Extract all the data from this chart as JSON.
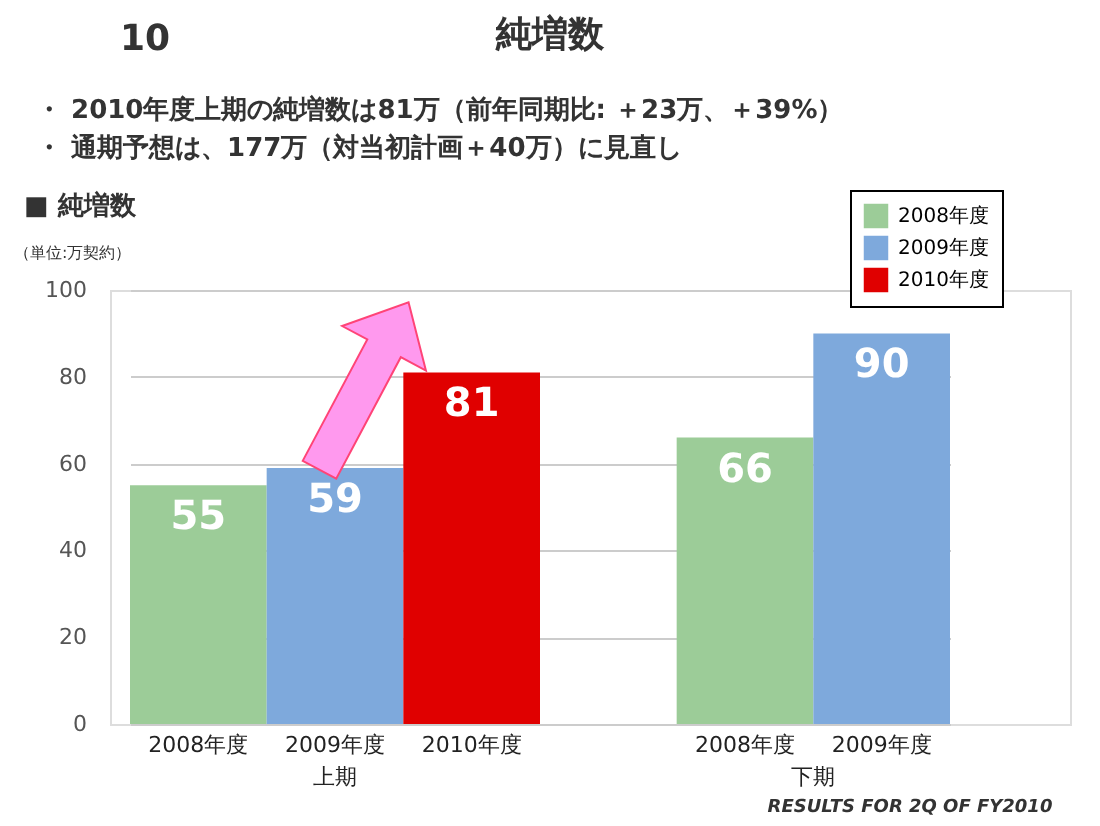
{
  "chart_data": {
    "type": "bar",
    "title": "純増数",
    "annotations": [
      "10",
      "・ 2010年度上期の純増数は81万（前年同期比: ＋23万、＋39%）",
      "・ 通期予想は、177万（対当初計画＋40万）に見直し",
      "■ 純増数",
      "RESULTS FOR 2Q OF FY2010"
    ],
    "ylabel": "（単位:万契約）",
    "categories": [
      "上期",
      "下期"
    ],
    "series": [
      {
        "name": "2008年度",
        "color": "#9ccc98",
        "values": [
          55,
          66
        ]
      },
      {
        "name": "2009年度",
        "color": "#7ea9dc",
        "values": [
          59,
          90
        ]
      },
      {
        "name": "2010年度",
        "color": "#e00000",
        "values": [
          81,
          null
        ]
      }
    ],
    "ylim": [
      0,
      100
    ],
    "yticks": [
      0,
      20,
      40,
      60,
      80,
      100
    ],
    "grid": "y",
    "legend": "top right",
    "data_labels": true
  }
}
